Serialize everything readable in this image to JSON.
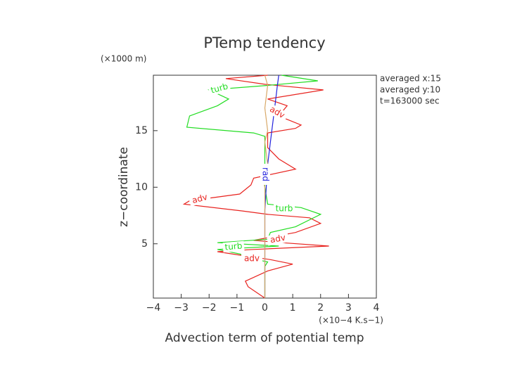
{
  "chart_data": {
    "type": "line",
    "title": "PTemp tendency",
    "y_unit": "(×1000 m)",
    "ylabel": "z−coordinate",
    "x_unit": "(×10−4 K.s−1)",
    "xlabel": "Advection term of potential temp",
    "info": [
      "averaged  x:15",
      "averaged  y:10",
      "t=163000 sec"
    ],
    "xlim": [
      -4,
      4
    ],
    "ylim": [
      0.2,
      19.9
    ],
    "xticks": [
      {
        "value": -4,
        "label": "−4"
      },
      {
        "value": -3,
        "label": "−3"
      },
      {
        "value": -2,
        "label": "−2"
      },
      {
        "value": -1,
        "label": "−1"
      },
      0,
      1,
      2,
      3,
      4
    ],
    "yticks": [
      5,
      10,
      15
    ],
    "series": [
      {
        "name": "adv",
        "color": "#e8231f",
        "values": [
          0,
          -0.6,
          -0.7,
          0.1,
          1.0,
          0.2,
          -0.9,
          -1.7,
          -0.4,
          2.3,
          0.6,
          -0.4,
          1.1,
          2.0,
          1.6,
          0.1,
          -0.8,
          -2.9,
          -2.7,
          -0.9,
          -0.5,
          -0.4,
          1.1,
          0.5,
          0.1,
          0.1,
          0.1,
          1.1,
          1.3,
          0.8,
          0.5,
          0.8,
          0.1,
          1.6,
          2.1,
          0,
          -1.4,
          0.1
        ],
        "y": [
          0.2,
          1.2,
          1.7,
          2.6,
          3.2,
          3.6,
          4.0,
          4.3,
          4.5,
          4.8,
          5.1,
          5.3,
          6.0,
          6.8,
          7.3,
          7.6,
          7.9,
          8.5,
          8.8,
          9.4,
          10.2,
          10.8,
          11.6,
          12.5,
          13.5,
          14.4,
          14.8,
          15.2,
          15.5,
          16.0,
          16.3,
          17.2,
          17.8,
          18.4,
          18.6,
          19.1,
          19.6,
          19.9
        ]
      },
      {
        "name": "turb",
        "color": "#22dd22",
        "values": [
          0,
          0,
          0.1,
          -0.5,
          -0.9,
          -1.7,
          0.5,
          -1.7,
          0.1,
          0.2,
          1.1,
          2.0,
          1.3,
          0.1,
          0,
          0,
          0,
          -0.4,
          -2.8,
          -2.7,
          -1.7,
          -1.3,
          -2.0,
          0.1,
          1.9,
          0.6
        ],
        "y": [
          0.2,
          3.0,
          3.4,
          3.7,
          4.1,
          4.5,
          4.8,
          5.1,
          5.4,
          6.0,
          6.5,
          7.6,
          8.2,
          8.5,
          10,
          12,
          14.5,
          14.8,
          15.3,
          16.3,
          17.2,
          17.8,
          18.6,
          19.0,
          19.4,
          19.9
        ]
      },
      {
        "name": "rad",
        "color": "#2222dd",
        "values": [
          0,
          0,
          0.05,
          0.1,
          0.2,
          0.25,
          0.3,
          0.35,
          0.4,
          0.45,
          0.5
        ],
        "y": [
          0.2,
          8,
          10,
          12,
          14,
          15,
          16,
          17,
          18,
          19,
          19.9
        ]
      },
      {
        "color": "#d8a868",
        "values": [
          0,
          0,
          -0.1,
          0.1,
          0,
          0.1,
          0,
          0.1,
          0
        ],
        "y": [
          0.2,
          10,
          11,
          12,
          14,
          15,
          17,
          19,
          19.9
        ]
      }
    ],
    "annotations": [
      "turb",
      "adv",
      "rad",
      "adv",
      "turb",
      "adv",
      "turb",
      "adv"
    ]
  }
}
